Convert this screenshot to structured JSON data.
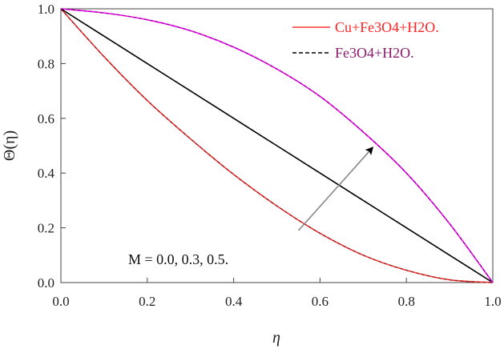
{
  "chart_data": {
    "type": "line",
    "title": "",
    "xlabel": "η",
    "ylabel": "Θ(η)",
    "xlim": [
      0.0,
      1.0
    ],
    "ylim": [
      0.0,
      1.0
    ],
    "x_ticks": [
      "0.0",
      "0.2",
      "0.4",
      "0.6",
      "0.8",
      "1.0"
    ],
    "y_ticks": [
      "0.0",
      "0.2",
      "0.4",
      "0.6",
      "0.8",
      "1.0"
    ],
    "grid": false,
    "legend_position": "top-right",
    "legend": [
      {
        "label": "Cu+Fe3O4+H2O.",
        "style": "solid",
        "color": "#ff3333"
      },
      {
        "label": "Fe3O4+H2O.",
        "style": "dashed",
        "color": "#000000"
      }
    ],
    "x": [
      0.0,
      0.1,
      0.2,
      0.3,
      0.4,
      0.5,
      0.6,
      0.7,
      0.8,
      0.9,
      1.0
    ],
    "series": [
      {
        "values": [
          1.0,
          0.825,
          0.665,
          0.525,
          0.395,
          0.28,
          0.18,
          0.1,
          0.045,
          0.01,
          0.0
        ],
        "color": "#ff3333",
        "dash_color": "#000000"
      },
      {
        "values": [
          1.0,
          0.9,
          0.8,
          0.7,
          0.6,
          0.5,
          0.4,
          0.3,
          0.2,
          0.1,
          0.0
        ],
        "color": "#000000",
        "dash_color": "#000000"
      },
      {
        "values": [
          1.0,
          0.985,
          0.96,
          0.92,
          0.86,
          0.78,
          0.68,
          0.55,
          0.4,
          0.215,
          0.0
        ],
        "color": "#ff00ff",
        "dash_color": "#000000"
      }
    ],
    "arrow": {
      "from": [
        0.55,
        0.19
      ],
      "to": [
        0.72,
        0.49
      ],
      "color": "#888888"
    },
    "annotation": "M = 0.0, 0.3, 0.5."
  }
}
